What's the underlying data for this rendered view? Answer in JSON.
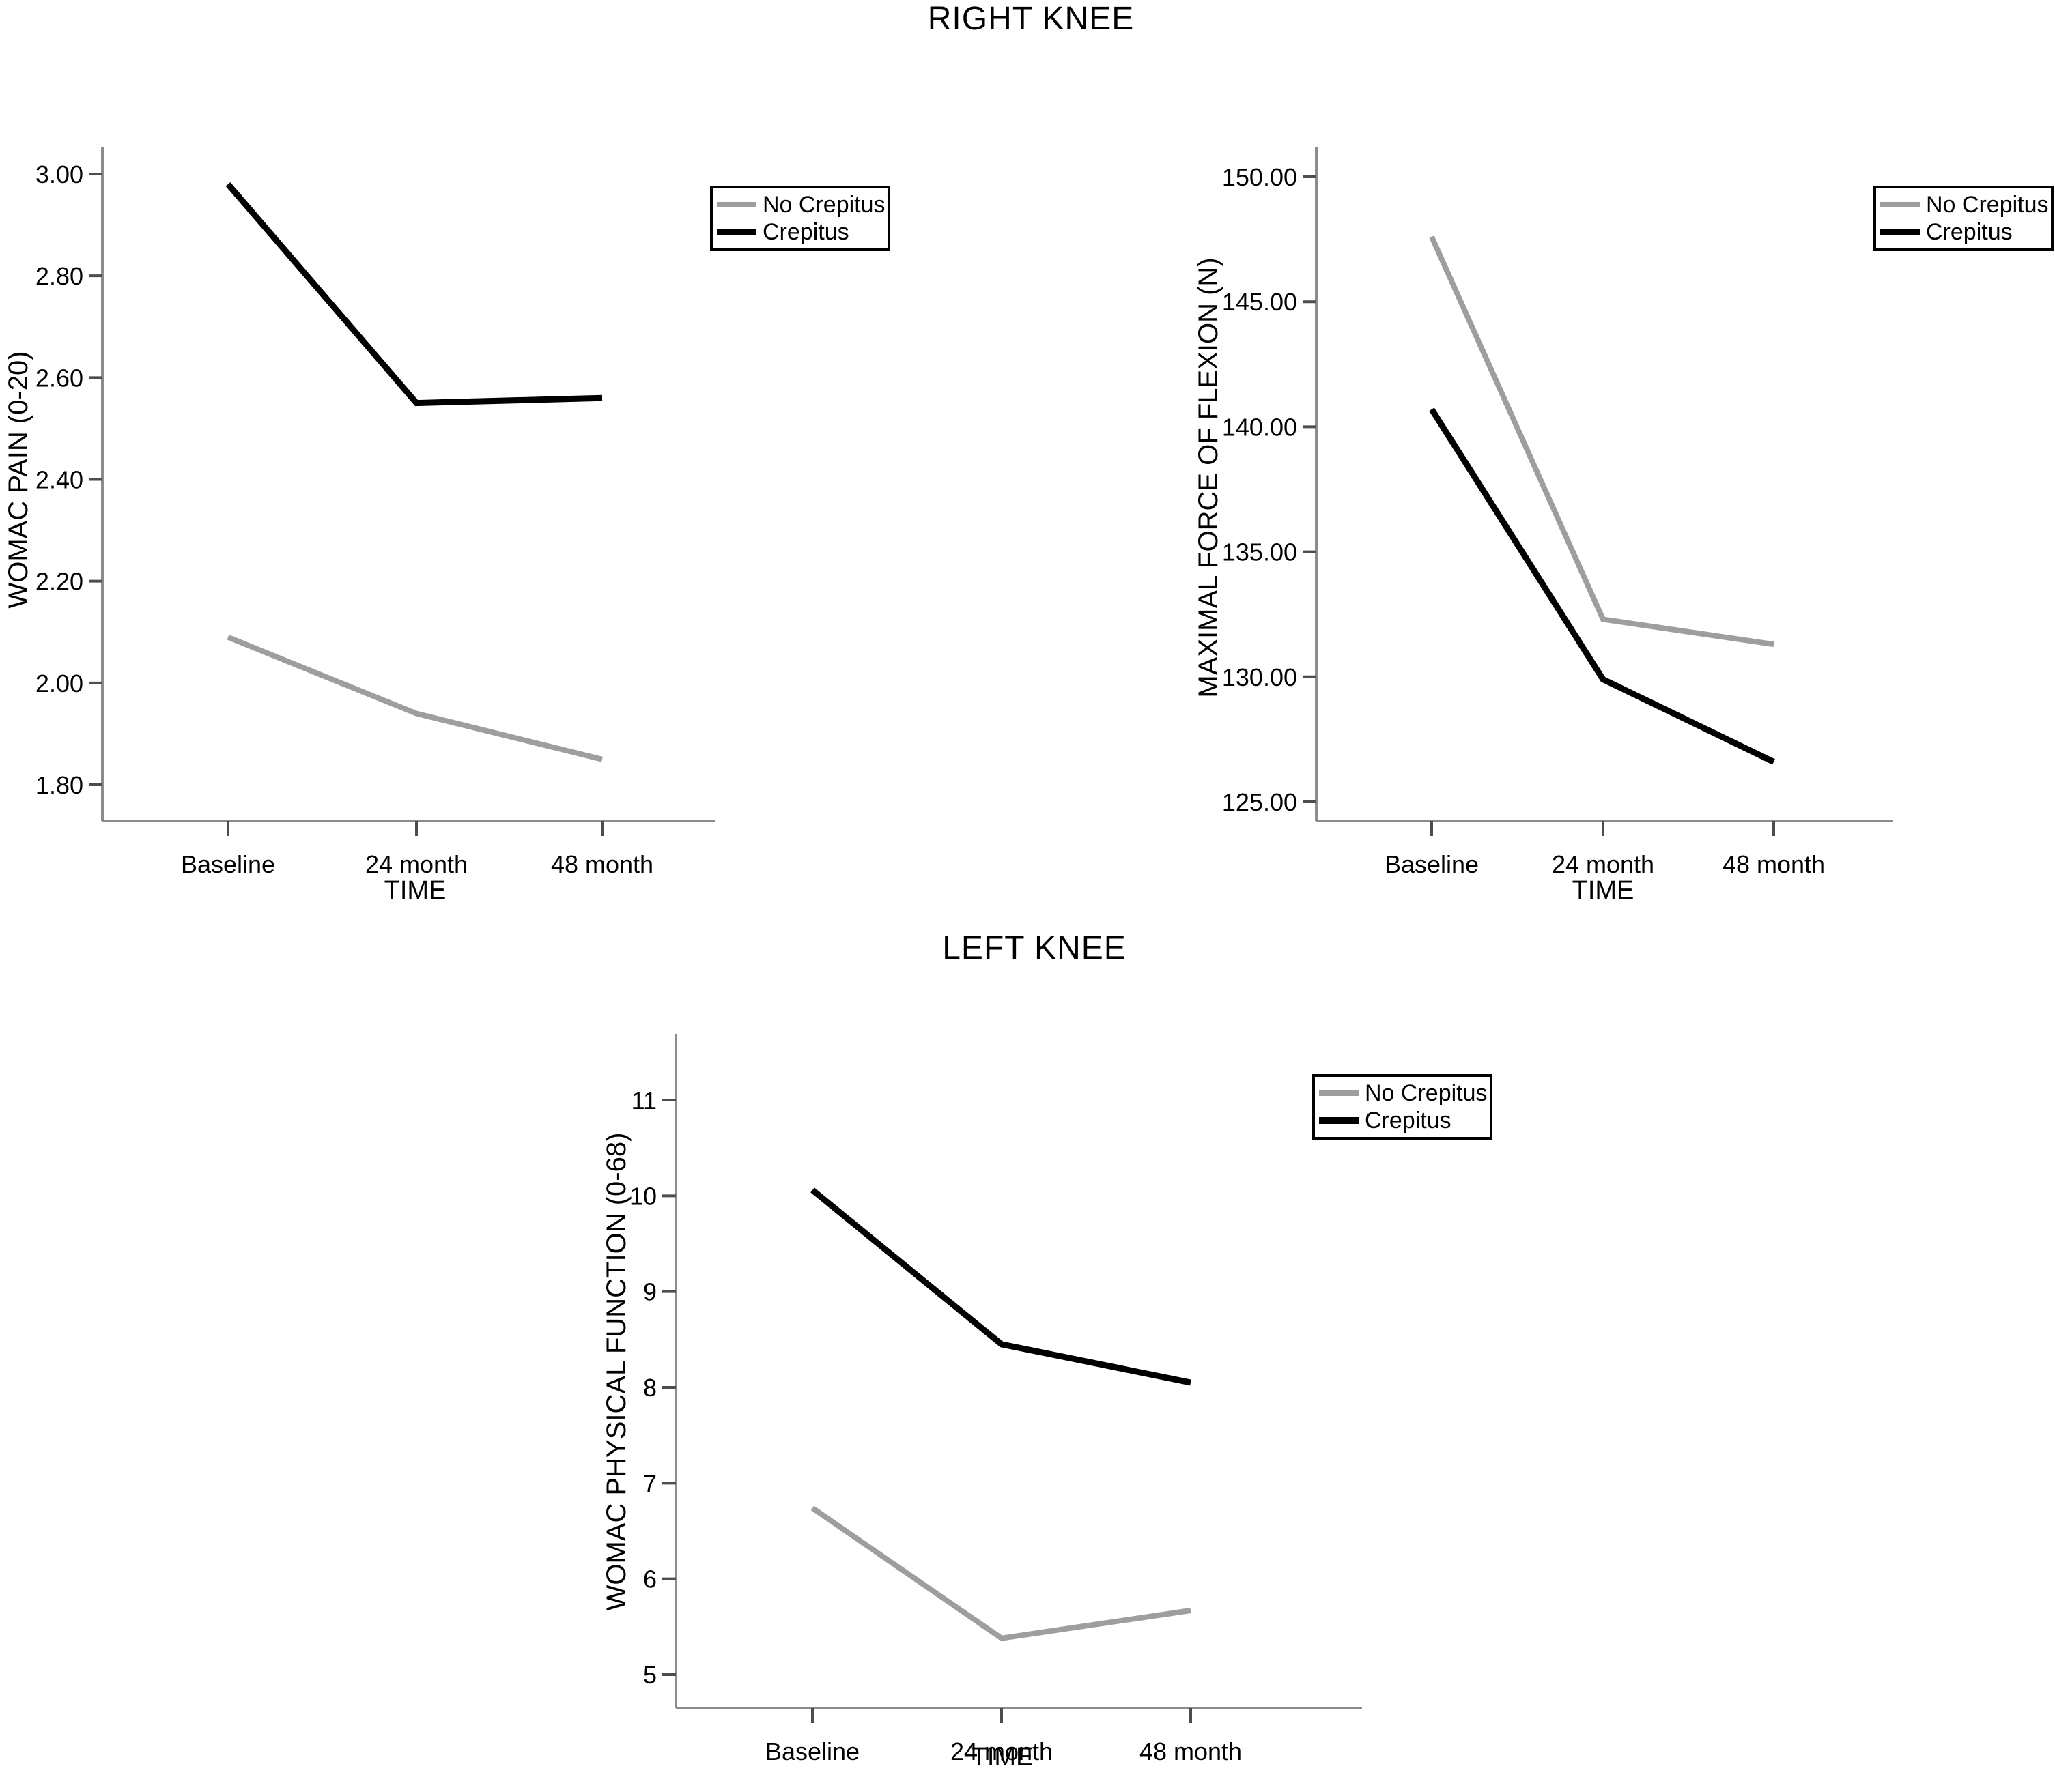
{
  "figure": {
    "right_knee_title": "RIGHT KNEE",
    "left_knee_title": "LEFT KNEE"
  },
  "colors": {
    "no_crepitus_line": "#9e9e9e",
    "crepitus_line": "#000000",
    "axis_line": "#8c8c8c",
    "tick_mark": "#4d4d4d",
    "text": "#000000",
    "legend_border": "#000000",
    "background": "#ffffff"
  },
  "legend": {
    "entries": [
      {
        "label": "No Crepitus",
        "color": "#9e9e9e"
      },
      {
        "label": "Crepitus",
        "color": "#000000"
      }
    ]
  },
  "chart_data": [
    {
      "id": "right-knee-womac-pain",
      "type": "line",
      "panel_title": "RIGHT KNEE",
      "xlabel": "TIME",
      "ylabel": "WOMAC PAIN (0-20)",
      "categories": [
        "Baseline",
        "24 month",
        "48 month"
      ],
      "yticks": [
        1.8,
        2.0,
        2.2,
        2.4,
        2.6,
        2.8,
        3.0
      ],
      "ytick_labels": [
        "1.80",
        "2.00",
        "2.20",
        "2.40",
        "2.60",
        "2.80",
        "3.00"
      ],
      "ylim": [
        1.73,
        3.06
      ],
      "grid": false,
      "legend_position": "top-right",
      "series": [
        {
          "name": "No Crepitus",
          "color": "#9e9e9e",
          "values": [
            2.09,
            1.94,
            1.85
          ]
        },
        {
          "name": "Crepitus",
          "color": "#000000",
          "values": [
            2.98,
            2.55,
            2.56
          ]
        }
      ]
    },
    {
      "id": "right-knee-maximal-force-of-flexion",
      "type": "line",
      "panel_title": "RIGHT KNEE",
      "xlabel": "TIME",
      "ylabel": "MAXIMAL FORCE OF FLEXION (N)",
      "categories": [
        "Baseline",
        "24 month",
        "48 month"
      ],
      "yticks": [
        125.0,
        130.0,
        135.0,
        140.0,
        145.0,
        150.0
      ],
      "ytick_labels": [
        "125.00",
        "130.00",
        "135.00",
        "140.00",
        "145.00",
        "150.00"
      ],
      "ylim": [
        124.2,
        151.4
      ],
      "grid": false,
      "legend_position": "top-right",
      "series": [
        {
          "name": "No Crepitus",
          "color": "#9e9e9e",
          "values": [
            147.6,
            132.3,
            131.3
          ]
        },
        {
          "name": "Crepitus",
          "color": "#000000",
          "values": [
            140.7,
            129.9,
            126.6
          ]
        }
      ]
    },
    {
      "id": "left-knee-womac-physical-function",
      "type": "line",
      "panel_title": "LEFT KNEE",
      "xlabel": "TIME",
      "ylabel": "WOMAC PHYSICAL FUNCTION (0-68)",
      "categories": [
        "Baseline",
        "24 month",
        "48 month"
      ],
      "yticks": [
        5,
        6,
        7,
        8,
        9,
        10,
        11
      ],
      "ytick_labels": [
        "5",
        "6",
        "7",
        "8",
        "9",
        "10",
        "11"
      ],
      "ylim": [
        4.65,
        11.66
      ],
      "grid": false,
      "legend_position": "top-right",
      "series": [
        {
          "name": "No Crepitus",
          "color": "#9e9e9e",
          "values": [
            6.74,
            5.38,
            5.67
          ]
        },
        {
          "name": "Crepitus",
          "color": "#000000",
          "values": [
            10.06,
            8.45,
            8.05
          ]
        }
      ]
    }
  ]
}
